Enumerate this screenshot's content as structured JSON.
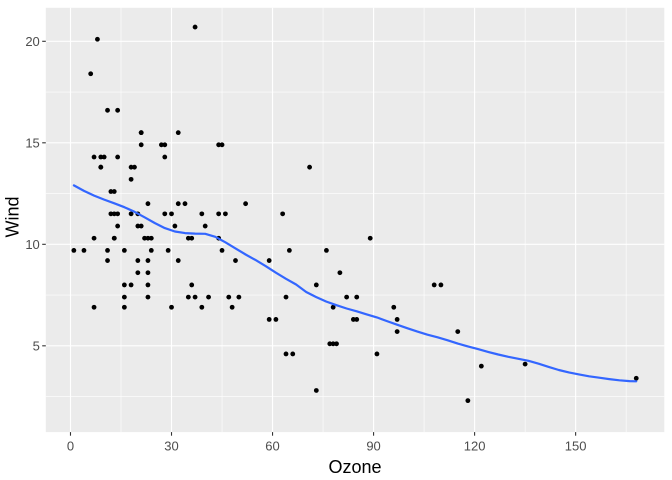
{
  "figure": {
    "x_axis_title": "Ozone",
    "y_axis_title": "Wind"
  },
  "chart_data": {
    "type": "scatter",
    "title": "",
    "xlabel": "Ozone",
    "ylabel": "Wind",
    "legend": "none",
    "grid": true,
    "x_ticks": [
      0,
      30,
      60,
      90,
      120,
      150
    ],
    "y_ticks": [
      5,
      10,
      15,
      20
    ],
    "x_minor_ticks": [
      15,
      45,
      75,
      105,
      135,
      165
    ],
    "y_minor_ticks": [
      2.5,
      7.5,
      12.5,
      17.5
    ],
    "xlim": [
      -7.33,
      176.33
    ],
    "ylim": [
      0.75,
      21.65
    ],
    "colors": {
      "panel_bg": "#EBEBEB",
      "grid": "#FFFFFF",
      "point": "#000000",
      "smooth_line": "#3366FF",
      "axis_text": "#4D4D4D",
      "tick_mark": "#333333",
      "axis_title": "#000000"
    },
    "points": [
      [
        41,
        7.4
      ],
      [
        36,
        8.0
      ],
      [
        12,
        12.6
      ],
      [
        18,
        11.5
      ],
      [
        28,
        14.9
      ],
      [
        23,
        8.6
      ],
      [
        19,
        13.8
      ],
      [
        8,
        20.1
      ],
      [
        7,
        6.9
      ],
      [
        16,
        9.7
      ],
      [
        11,
        9.2
      ],
      [
        14,
        10.9
      ],
      [
        18,
        13.2
      ],
      [
        14,
        11.5
      ],
      [
        34,
        12.0
      ],
      [
        6,
        18.4
      ],
      [
        30,
        11.5
      ],
      [
        11,
        9.7
      ],
      [
        1,
        9.7
      ],
      [
        11,
        16.6
      ],
      [
        4,
        9.7
      ],
      [
        32,
        12.0
      ],
      [
        23,
        12.0
      ],
      [
        45,
        14.9
      ],
      [
        115,
        5.7
      ],
      [
        37,
        7.4
      ],
      [
        29,
        9.7
      ],
      [
        71,
        13.8
      ],
      [
        39,
        11.5
      ],
      [
        23,
        8.0
      ],
      [
        21,
        14.9
      ],
      [
        37,
        20.7
      ],
      [
        20,
        9.2
      ],
      [
        12,
        11.5
      ],
      [
        13,
        10.3
      ],
      [
        135,
        4.1
      ],
      [
        49,
        9.2
      ],
      [
        32,
        9.2
      ],
      [
        64,
        4.6
      ],
      [
        40,
        10.9
      ],
      [
        77,
        5.1
      ],
      [
        97,
        6.3
      ],
      [
        97,
        5.7
      ],
      [
        85,
        7.4
      ],
      [
        10,
        14.3
      ],
      [
        27,
        14.9
      ],
      [
        7,
        14.3
      ],
      [
        48,
        6.9
      ],
      [
        35,
        10.3
      ],
      [
        61,
        6.3
      ],
      [
        79,
        5.1
      ],
      [
        63,
        11.5
      ],
      [
        16,
        6.9
      ],
      [
        80,
        8.6
      ],
      [
        108,
        8.0
      ],
      [
        20,
        8.6
      ],
      [
        52,
        12.0
      ],
      [
        82,
        7.4
      ],
      [
        50,
        7.4
      ],
      [
        64,
        7.4
      ],
      [
        59,
        9.2
      ],
      [
        39,
        6.9
      ],
      [
        9,
        13.8
      ],
      [
        16,
        7.4
      ],
      [
        78,
        6.9
      ],
      [
        35,
        7.4
      ],
      [
        66,
        4.6
      ],
      [
        122,
        4.0
      ],
      [
        89,
        10.3
      ],
      [
        110,
        8.0
      ],
      [
        44,
        11.5
      ],
      [
        28,
        11.5
      ],
      [
        65,
        9.7
      ],
      [
        22,
        10.3
      ],
      [
        59,
        6.3
      ],
      [
        23,
        7.4
      ],
      [
        31,
        10.9
      ],
      [
        44,
        10.3
      ],
      [
        21,
        15.5
      ],
      [
        9,
        14.3
      ],
      [
        45,
        9.7
      ],
      [
        168,
        3.4
      ],
      [
        73,
        8.0
      ],
      [
        76,
        9.7
      ],
      [
        118,
        2.3
      ],
      [
        84,
        6.3
      ],
      [
        85,
        6.3
      ],
      [
        96,
        6.9
      ],
      [
        78,
        5.1
      ],
      [
        73,
        2.8
      ],
      [
        91,
        4.6
      ],
      [
        47,
        7.4
      ],
      [
        32,
        15.5
      ],
      [
        20,
        10.9
      ],
      [
        23,
        10.3
      ],
      [
        21,
        10.9
      ],
      [
        24,
        9.7
      ],
      [
        44,
        14.9
      ],
      [
        21,
        15.5
      ],
      [
        28,
        14.3
      ],
      [
        9,
        13.8
      ],
      [
        13,
        11.5
      ],
      [
        46,
        11.5
      ],
      [
        18,
        13.8
      ],
      [
        13,
        10.3
      ],
      [
        24,
        10.3
      ],
      [
        16,
        8.0
      ],
      [
        13,
        12.6
      ],
      [
        23,
        9.2
      ],
      [
        36,
        10.3
      ],
      [
        7,
        10.3
      ],
      [
        14,
        16.6
      ],
      [
        30,
        6.9
      ],
      [
        14,
        14.3
      ],
      [
        18,
        8.0
      ],
      [
        20,
        11.5
      ]
    ],
    "smooth_line": [
      [
        1,
        12.9
      ],
      [
        4,
        12.63
      ],
      [
        7,
        12.4
      ],
      [
        10,
        12.2
      ],
      [
        13,
        12.02
      ],
      [
        16,
        11.83
      ],
      [
        19,
        11.6
      ],
      [
        22,
        11.33
      ],
      [
        25,
        11.05
      ],
      [
        28,
        10.8
      ],
      [
        31,
        10.63
      ],
      [
        34,
        10.55
      ],
      [
        37,
        10.53
      ],
      [
        40,
        10.52
      ],
      [
        43,
        10.37
      ],
      [
        46,
        10.1
      ],
      [
        49,
        9.8
      ],
      [
        52,
        9.5
      ],
      [
        55,
        9.22
      ],
      [
        58,
        8.92
      ],
      [
        61,
        8.6
      ],
      [
        64,
        8.3
      ],
      [
        67,
        8.02
      ],
      [
        70,
        7.65
      ],
      [
        73,
        7.4
      ],
      [
        76,
        7.18
      ],
      [
        79,
        7.0
      ],
      [
        82,
        6.84
      ],
      [
        85,
        6.7
      ],
      [
        88,
        6.55
      ],
      [
        91,
        6.4
      ],
      [
        94,
        6.22
      ],
      [
        97,
        6.04
      ],
      [
        100,
        5.87
      ],
      [
        103,
        5.7
      ],
      [
        106,
        5.55
      ],
      [
        109,
        5.42
      ],
      [
        112,
        5.27
      ],
      [
        115,
        5.11
      ],
      [
        118,
        4.97
      ],
      [
        121,
        4.84
      ],
      [
        124,
        4.7
      ],
      [
        127,
        4.57
      ],
      [
        130,
        4.46
      ],
      [
        133,
        4.36
      ],
      [
        136,
        4.26
      ],
      [
        139,
        4.12
      ],
      [
        142,
        3.96
      ],
      [
        145,
        3.81
      ],
      [
        148,
        3.69
      ],
      [
        151,
        3.59
      ],
      [
        154,
        3.5
      ],
      [
        157,
        3.43
      ],
      [
        160,
        3.36
      ],
      [
        163,
        3.3
      ],
      [
        166,
        3.26
      ],
      [
        168,
        3.25
      ]
    ]
  }
}
